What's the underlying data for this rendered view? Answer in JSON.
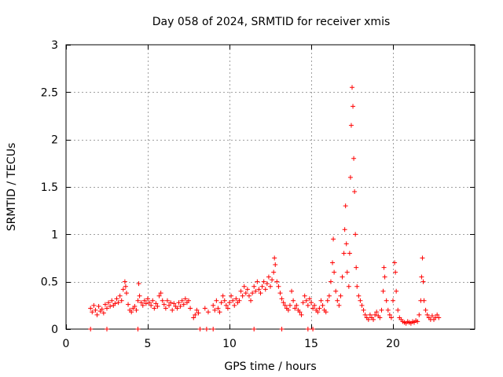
{
  "chart_data": {
    "type": "scatter",
    "title": "Day 058 of 2024, SRMTID for receiver xmis",
    "xlabel": "GPS time / hours",
    "ylabel": "SRMTID / TECUs",
    "xlim": [
      0,
      25
    ],
    "ylim": [
      0,
      3
    ],
    "xticks": [
      0,
      5,
      10,
      15,
      20
    ],
    "yticks": [
      0,
      0.5,
      1,
      1.5,
      2,
      2.5,
      3
    ],
    "xtick_labels": [
      "0",
      "5",
      "10",
      "15",
      "20"
    ],
    "ytick_labels": [
      "0",
      "0.5",
      "1",
      "1.5",
      "2",
      "2.5",
      "3"
    ],
    "grid": true,
    "marker": "plus",
    "color": "#ff0000",
    "series": [
      {
        "name": "SRMTID",
        "points": [
          [
            1.5,
            0.22
          ],
          [
            1.6,
            0.18
          ],
          [
            1.7,
            0.25
          ],
          [
            1.8,
            0.2
          ],
          [
            1.9,
            0.15
          ],
          [
            2.0,
            0.24
          ],
          [
            2.1,
            0.19
          ],
          [
            2.2,
            0.21
          ],
          [
            2.3,
            0.17
          ],
          [
            2.4,
            0.26
          ],
          [
            2.5,
            0.22
          ],
          [
            2.6,
            0.28
          ],
          [
            2.7,
            0.24
          ],
          [
            2.8,
            0.3
          ],
          [
            2.9,
            0.25
          ],
          [
            3.0,
            0.27
          ],
          [
            3.1,
            0.32
          ],
          [
            3.2,
            0.28
          ],
          [
            3.3,
            0.35
          ],
          [
            3.4,
            0.3
          ],
          [
            3.5,
            0.42
          ],
          [
            3.6,
            0.5
          ],
          [
            3.65,
            0.45
          ],
          [
            3.7,
            0.38
          ],
          [
            3.8,
            0.26
          ],
          [
            3.9,
            0.2
          ],
          [
            4.0,
            0.18
          ],
          [
            4.1,
            0.22
          ],
          [
            4.2,
            0.24
          ],
          [
            4.3,
            0.2
          ],
          [
            4.4,
            0.3
          ],
          [
            4.45,
            0.48
          ],
          [
            4.5,
            0.35
          ],
          [
            4.6,
            0.28
          ],
          [
            4.7,
            0.25
          ],
          [
            4.8,
            0.3
          ],
          [
            4.9,
            0.27
          ],
          [
            5.0,
            0.32
          ],
          [
            5.1,
            0.28
          ],
          [
            5.2,
            0.25
          ],
          [
            5.3,
            0.3
          ],
          [
            5.4,
            0.22
          ],
          [
            5.5,
            0.27
          ],
          [
            5.6,
            0.24
          ],
          [
            5.7,
            0.35
          ],
          [
            5.8,
            0.38
          ],
          [
            5.9,
            0.3
          ],
          [
            6.0,
            0.26
          ],
          [
            6.1,
            0.22
          ],
          [
            6.2,
            0.3
          ],
          [
            6.3,
            0.25
          ],
          [
            6.4,
            0.28
          ],
          [
            6.5,
            0.2
          ],
          [
            6.6,
            0.27
          ],
          [
            6.7,
            0.24
          ],
          [
            6.8,
            0.22
          ],
          [
            6.9,
            0.28
          ],
          [
            7.0,
            0.24
          ],
          [
            7.1,
            0.3
          ],
          [
            7.2,
            0.26
          ],
          [
            7.3,
            0.32
          ],
          [
            7.4,
            0.28
          ],
          [
            7.5,
            0.3
          ],
          [
            7.6,
            0.22
          ],
          [
            7.8,
            0.12
          ],
          [
            7.9,
            0.15
          ],
          [
            8.0,
            0.2
          ],
          [
            8.1,
            0.17
          ],
          [
            8.5,
            0.22
          ],
          [
            8.7,
            0.18
          ],
          [
            9.0,
            0.25
          ],
          [
            9.1,
            0.2
          ],
          [
            9.2,
            0.3
          ],
          [
            9.3,
            0.22
          ],
          [
            9.4,
            0.18
          ],
          [
            9.5,
            0.28
          ],
          [
            9.6,
            0.35
          ],
          [
            9.7,
            0.3
          ],
          [
            9.8,
            0.25
          ],
          [
            9.9,
            0.22
          ],
          [
            10.0,
            0.28
          ],
          [
            10.1,
            0.35
          ],
          [
            10.2,
            0.3
          ],
          [
            10.3,
            0.25
          ],
          [
            10.4,
            0.32
          ],
          [
            10.5,
            0.28
          ],
          [
            10.6,
            0.3
          ],
          [
            10.7,
            0.4
          ],
          [
            10.8,
            0.35
          ],
          [
            10.9,
            0.45
          ],
          [
            11.0,
            0.38
          ],
          [
            11.1,
            0.42
          ],
          [
            11.2,
            0.35
          ],
          [
            11.3,
            0.3
          ],
          [
            11.4,
            0.38
          ],
          [
            11.5,
            0.45
          ],
          [
            11.6,
            0.4
          ],
          [
            11.7,
            0.5
          ],
          [
            11.8,
            0.42
          ],
          [
            11.9,
            0.38
          ],
          [
            12.0,
            0.45
          ],
          [
            12.1,
            0.5
          ],
          [
            12.2,
            0.42
          ],
          [
            12.3,
            0.48
          ],
          [
            12.4,
            0.55
          ],
          [
            12.5,
            0.45
          ],
          [
            12.6,
            0.52
          ],
          [
            12.7,
            0.6
          ],
          [
            12.75,
            0.75
          ],
          [
            12.8,
            0.68
          ],
          [
            12.9,
            0.5
          ],
          [
            13.0,
            0.45
          ],
          [
            13.1,
            0.38
          ],
          [
            13.2,
            0.32
          ],
          [
            13.3,
            0.28
          ],
          [
            13.4,
            0.25
          ],
          [
            13.5,
            0.22
          ],
          [
            13.6,
            0.2
          ],
          [
            13.7,
            0.25
          ],
          [
            13.8,
            0.4
          ],
          [
            13.9,
            0.3
          ],
          [
            14.0,
            0.22
          ],
          [
            14.1,
            0.25
          ],
          [
            14.2,
            0.2
          ],
          [
            14.3,
            0.18
          ],
          [
            14.4,
            0.15
          ],
          [
            14.5,
            0.28
          ],
          [
            14.6,
            0.35
          ],
          [
            14.7,
            0.3
          ],
          [
            14.8,
            0.25
          ],
          [
            14.9,
            0.32
          ],
          [
            15.0,
            0.28
          ],
          [
            15.1,
            0.22
          ],
          [
            15.2,
            0.25
          ],
          [
            15.3,
            0.2
          ],
          [
            15.4,
            0.18
          ],
          [
            15.5,
            0.22
          ],
          [
            15.6,
            0.3
          ],
          [
            15.7,
            0.25
          ],
          [
            15.8,
            0.2
          ],
          [
            15.9,
            0.18
          ],
          [
            16.0,
            0.3
          ],
          [
            16.1,
            0.35
          ],
          [
            16.2,
            0.5
          ],
          [
            16.3,
            0.7
          ],
          [
            16.35,
            0.95
          ],
          [
            16.4,
            0.6
          ],
          [
            16.5,
            0.4
          ],
          [
            16.6,
            0.3
          ],
          [
            16.7,
            0.25
          ],
          [
            16.8,
            0.35
          ],
          [
            16.9,
            0.55
          ],
          [
            17.0,
            0.8
          ],
          [
            17.05,
            1.05
          ],
          [
            17.1,
            1.3
          ],
          [
            17.15,
            0.9
          ],
          [
            17.2,
            0.6
          ],
          [
            17.3,
            0.45
          ],
          [
            17.35,
            0.8
          ],
          [
            17.4,
            1.6
          ],
          [
            17.45,
            2.15
          ],
          [
            17.5,
            2.55
          ],
          [
            17.55,
            2.35
          ],
          [
            17.6,
            1.8
          ],
          [
            17.65,
            1.45
          ],
          [
            17.7,
            1.0
          ],
          [
            17.75,
            0.65
          ],
          [
            17.8,
            0.45
          ],
          [
            17.9,
            0.35
          ],
          [
            18.0,
            0.3
          ],
          [
            18.1,
            0.25
          ],
          [
            18.2,
            0.2
          ],
          [
            18.3,
            0.15
          ],
          [
            18.4,
            0.12
          ],
          [
            18.5,
            0.1
          ],
          [
            18.6,
            0.15
          ],
          [
            18.7,
            0.12
          ],
          [
            18.8,
            0.1
          ],
          [
            18.9,
            0.15
          ],
          [
            19.0,
            0.18
          ],
          [
            19.1,
            0.14
          ],
          [
            19.2,
            0.12
          ],
          [
            19.3,
            0.2
          ],
          [
            19.4,
            0.4
          ],
          [
            19.45,
            0.65
          ],
          [
            19.5,
            0.55
          ],
          [
            19.6,
            0.3
          ],
          [
            19.7,
            0.2
          ],
          [
            19.8,
            0.15
          ],
          [
            19.9,
            0.12
          ],
          [
            20.0,
            0.3
          ],
          [
            20.1,
            0.7
          ],
          [
            20.15,
            0.6
          ],
          [
            20.2,
            0.4
          ],
          [
            20.3,
            0.2
          ],
          [
            20.4,
            0.12
          ],
          [
            20.5,
            0.1
          ],
          [
            20.6,
            0.08
          ],
          [
            20.7,
            0.07
          ],
          [
            20.8,
            0.06
          ],
          [
            20.9,
            0.08
          ],
          [
            21.0,
            0.07
          ],
          [
            21.1,
            0.06
          ],
          [
            21.2,
            0.08
          ],
          [
            21.3,
            0.07
          ],
          [
            21.4,
            0.09
          ],
          [
            21.5,
            0.08
          ],
          [
            21.6,
            0.15
          ],
          [
            21.7,
            0.3
          ],
          [
            21.75,
            0.55
          ],
          [
            21.8,
            0.75
          ],
          [
            21.85,
            0.5
          ],
          [
            21.9,
            0.3
          ],
          [
            22.0,
            0.2
          ],
          [
            22.1,
            0.15
          ],
          [
            22.2,
            0.12
          ],
          [
            22.3,
            0.1
          ],
          [
            22.4,
            0.14
          ],
          [
            22.5,
            0.1
          ],
          [
            22.6,
            0.12
          ],
          [
            22.7,
            0.15
          ],
          [
            22.8,
            0.12
          ],
          [
            1.5,
            0.0
          ],
          [
            2.5,
            0.0
          ],
          [
            4.4,
            0.0
          ],
          [
            8.2,
            0.0
          ],
          [
            8.6,
            0.0
          ],
          [
            9.0,
            0.0
          ],
          [
            11.5,
            0.0
          ],
          [
            13.2,
            0.0
          ],
          [
            14.8,
            0.0
          ],
          [
            15.1,
            0.0
          ]
        ]
      }
    ]
  }
}
